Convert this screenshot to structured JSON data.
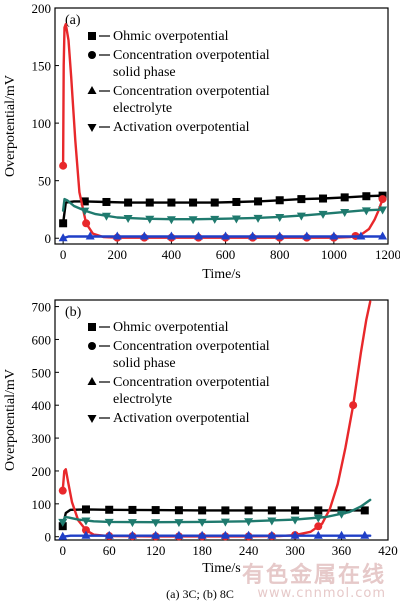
{
  "figure_caption": "(a) 3C; (b) 8C",
  "watermark": {
    "text": "有色金属在线",
    "url": "www.cnnmol.com"
  },
  "legend_entries": [
    {
      "lines": [
        "Ohmic overpotential"
      ],
      "marker": "square"
    },
    {
      "lines": [
        "Concentration overpotential",
        "solid phase"
      ],
      "marker": "circle"
    },
    {
      "lines": [
        "Concentration overpotential",
        "electrolyte"
      ],
      "marker": "triangle-up"
    },
    {
      "lines": [
        "Activation overpotential"
      ],
      "marker": "triangle-down"
    }
  ],
  "colors": {
    "ohmic": "#000000",
    "solid": "#e8282b",
    "electrolyte": "#1f3fc7",
    "activation": "#1f7a6e"
  },
  "chart_data": [
    {
      "type": "line",
      "panel_label": "(a)",
      "xlabel": "Time/s",
      "ylabel": "Overpotential/mV",
      "xlim": [
        -30,
        1200
      ],
      "ylim": [
        -5,
        200
      ],
      "xticks": [
        0,
        200,
        400,
        600,
        800,
        1000,
        1200
      ],
      "yticks": [
        0,
        50,
        100,
        150,
        200
      ],
      "series": [
        {
          "name": "Ohmic overpotential",
          "key": "ohmic",
          "marker": "square",
          "x": [
            0,
            10,
            40,
            80,
            160,
            240,
            320,
            400,
            480,
            560,
            640,
            720,
            800,
            880,
            960,
            1040,
            1120,
            1180
          ],
          "y": [
            13,
            31,
            32,
            32,
            31.5,
            31,
            31,
            31,
            31,
            31,
            31.5,
            32,
            33,
            34,
            34.5,
            35.5,
            36.5,
            37
          ],
          "marker_x": [
            0,
            80,
            160,
            240,
            320,
            400,
            480,
            560,
            640,
            720,
            800,
            880,
            960,
            1040,
            1120,
            1180
          ]
        },
        {
          "name": "Concentration overpotential solid phase",
          "key": "solid",
          "marker": "circle",
          "x": [
            0,
            2,
            5,
            10,
            20,
            30,
            45,
            60,
            85,
            110,
            150,
            200,
            400,
            600,
            800,
            1000,
            1060,
            1100,
            1130,
            1150,
            1165,
            1180
          ],
          "y": [
            63,
            150,
            183,
            186,
            172,
            140,
            85,
            40,
            13,
            4,
            1,
            0.5,
            0.5,
            0.5,
            0.5,
            0.5,
            1,
            3,
            8,
            16,
            24,
            34
          ],
          "marker_x": [
            0,
            85,
            200,
            300,
            400,
            500,
            600,
            700,
            800,
            900,
            1000,
            1080,
            1180
          ]
        },
        {
          "name": "Concentration overpotential electrolyte",
          "key": "electrolyte",
          "marker": "triangle-up",
          "x": [
            0,
            20,
            100,
            200,
            300,
            400,
            500,
            600,
            700,
            800,
            900,
            1000,
            1100,
            1180
          ],
          "y": [
            0,
            1.5,
            1.5,
            1.5,
            1.5,
            1.5,
            1.5,
            1.5,
            1.5,
            1.5,
            1.5,
            1.5,
            1.5,
            1.5
          ],
          "marker_x": [
            0,
            100,
            200,
            300,
            400,
            500,
            600,
            700,
            800,
            900,
            1000,
            1100,
            1180
          ]
        },
        {
          "name": "Activation overpotential",
          "key": "activation",
          "marker": "triangle-down",
          "x": [
            0,
            5,
            15,
            40,
            80,
            120,
            200,
            300,
            400,
            500,
            600,
            700,
            800,
            900,
            1000,
            1100,
            1180
          ],
          "y": [
            24,
            34,
            33,
            28,
            24,
            21,
            18,
            17,
            16.5,
            16.5,
            17,
            17.5,
            18.5,
            20,
            22,
            24,
            25
          ],
          "marker_x": [
            80,
            160,
            240,
            320,
            400,
            480,
            560,
            640,
            720,
            800,
            880,
            960,
            1040,
            1120,
            1180
          ]
        }
      ]
    },
    {
      "type": "line",
      "panel_label": "(b)",
      "xlabel": "Time/s",
      "ylabel": "Overpotential/mV",
      "xlim": [
        -10,
        420
      ],
      "ylim": [
        -10,
        720
      ],
      "xticks": [
        0,
        60,
        120,
        180,
        240,
        300,
        360,
        420
      ],
      "yticks": [
        0,
        100,
        200,
        300,
        400,
        500,
        600,
        700
      ],
      "series": [
        {
          "name": "Ohmic overpotential",
          "key": "ohmic",
          "marker": "square",
          "x": [
            0,
            4,
            10,
            30,
            60,
            120,
            180,
            240,
            300,
            360,
            390
          ],
          "y": [
            32,
            72,
            82,
            83,
            82,
            81,
            80,
            80,
            80,
            80,
            80
          ],
          "marker_x": [
            0,
            30,
            60,
            90,
            120,
            150,
            180,
            210,
            240,
            270,
            300,
            330,
            360,
            390
          ]
        },
        {
          "name": "Concentration overpotential solid phase",
          "key": "solid",
          "marker": "circle",
          "x": [
            0,
            2,
            4,
            7,
            12,
            20,
            30,
            40,
            60,
            120,
            180,
            240,
            280,
            300,
            320,
            335,
            345,
            355,
            365,
            375,
            385,
            392,
            397
          ],
          "y": [
            140,
            200,
            205,
            165,
            105,
            50,
            20,
            6,
            2,
            1,
            1,
            1,
            2,
            5,
            15,
            40,
            85,
            160,
            270,
            400,
            560,
            660,
            715
          ],
          "marker_x": [
            0,
            30,
            60,
            90,
            120,
            150,
            180,
            210,
            240,
            270,
            300,
            330,
            375
          ]
        },
        {
          "name": "Concentration overpotential electrolyte",
          "key": "electrolyte",
          "marker": "triangle-up",
          "x": [
            0,
            10,
            60,
            120,
            180,
            240,
            300,
            360,
            397
          ],
          "y": [
            0,
            3,
            3,
            3,
            3,
            3,
            3,
            3,
            3
          ],
          "marker_x": [
            0,
            30,
            60,
            90,
            120,
            150,
            180,
            210,
            240,
            270,
            300,
            330,
            360,
            390
          ]
        },
        {
          "name": "Activation overpotential",
          "key": "activation",
          "marker": "triangle-down",
          "x": [
            0,
            3,
            8,
            20,
            40,
            60,
            120,
            180,
            240,
            300,
            340,
            370,
            385,
            397
          ],
          "y": [
            45,
            60,
            58,
            52,
            47,
            45,
            44,
            45,
            47,
            52,
            60,
            75,
            92,
            112
          ],
          "marker_x": [
            0,
            30,
            60,
            90,
            120,
            150,
            180,
            210,
            240,
            270,
            300,
            330,
            360
          ]
        }
      ]
    }
  ]
}
